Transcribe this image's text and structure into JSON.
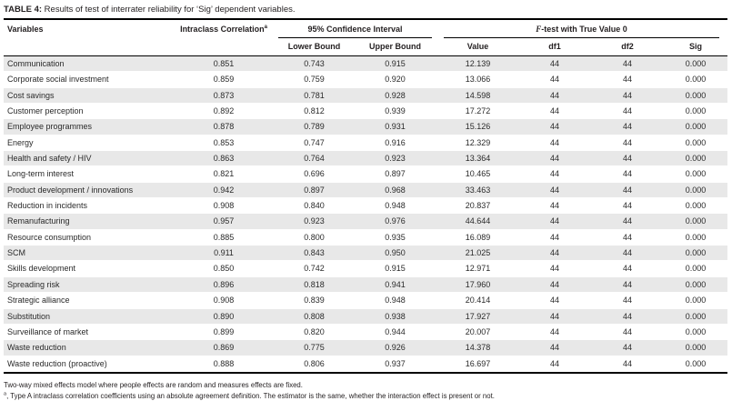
{
  "title": {
    "bold": "TABLE 4:",
    "rest": " Results of test of interrater reliability for ‘Sig’ dependent variables."
  },
  "table": {
    "headers": {
      "variables": "Variables",
      "icc": "Intraclass Correlation",
      "icc_sup": "a",
      "ci_group": "95% Confidence Interval",
      "ci_lower": "Lower Bound",
      "ci_upper": "Upper Bound",
      "ftest_italic": "F",
      "ftest_rest": "-test with True Value 0",
      "value": "Value",
      "df1": "df1",
      "df2": "df2",
      "sig": "Sig"
    },
    "rows": [
      {
        "variable": "Communication",
        "icc": "0.851",
        "lower": "0.743",
        "upper": "0.915",
        "value": "12.139",
        "df1": "44",
        "df2": "44",
        "sig": "0.000"
      },
      {
        "variable": "Corporate social investment",
        "icc": "0.859",
        "lower": "0.759",
        "upper": "0.920",
        "value": "13.066",
        "df1": "44",
        "df2": "44",
        "sig": "0.000"
      },
      {
        "variable": "Cost savings",
        "icc": "0.873",
        "lower": "0.781",
        "upper": "0.928",
        "value": "14.598",
        "df1": "44",
        "df2": "44",
        "sig": "0.000"
      },
      {
        "variable": "Customer perception",
        "icc": "0.892",
        "lower": "0.812",
        "upper": "0.939",
        "value": "17.272",
        "df1": "44",
        "df2": "44",
        "sig": "0.000"
      },
      {
        "variable": "Employee programmes",
        "icc": "0.878",
        "lower": "0.789",
        "upper": "0.931",
        "value": "15.126",
        "df1": "44",
        "df2": "44",
        "sig": "0.000"
      },
      {
        "variable": "Energy",
        "icc": "0.853",
        "lower": "0.747",
        "upper": "0.916",
        "value": "12.329",
        "df1": "44",
        "df2": "44",
        "sig": "0.000"
      },
      {
        "variable": "Health and safety / HIV",
        "icc": "0.863",
        "lower": "0.764",
        "upper": "0.923",
        "value": "13.364",
        "df1": "44",
        "df2": "44",
        "sig": "0.000"
      },
      {
        "variable": "Long-term interest",
        "icc": "0.821",
        "lower": "0.696",
        "upper": "0.897",
        "value": "10.465",
        "df1": "44",
        "df2": "44",
        "sig": "0.000"
      },
      {
        "variable": "Product development / innovations",
        "icc": "0.942",
        "lower": "0.897",
        "upper": "0.968",
        "value": "33.463",
        "df1": "44",
        "df2": "44",
        "sig": "0.000"
      },
      {
        "variable": "Reduction in incidents",
        "icc": "0.908",
        "lower": "0.840",
        "upper": "0.948",
        "value": "20.837",
        "df1": "44",
        "df2": "44",
        "sig": "0.000"
      },
      {
        "variable": "Remanufacturing",
        "icc": "0.957",
        "lower": "0.923",
        "upper": "0.976",
        "value": "44.644",
        "df1": "44",
        "df2": "44",
        "sig": "0.000"
      },
      {
        "variable": "Resource consumption",
        "icc": "0.885",
        "lower": "0.800",
        "upper": "0.935",
        "value": "16.089",
        "df1": "44",
        "df2": "44",
        "sig": "0.000"
      },
      {
        "variable": "SCM",
        "icc": "0.911",
        "lower": "0.843",
        "upper": "0.950",
        "value": "21.025",
        "df1": "44",
        "df2": "44",
        "sig": "0.000"
      },
      {
        "variable": "Skills development",
        "icc": "0.850",
        "lower": "0.742",
        "upper": "0.915",
        "value": "12.971",
        "df1": "44",
        "df2": "44",
        "sig": "0.000"
      },
      {
        "variable": "Spreading risk",
        "icc": "0.896",
        "lower": "0.818",
        "upper": "0.941",
        "value": "17.960",
        "df1": "44",
        "df2": "44",
        "sig": "0.000"
      },
      {
        "variable": "Strategic alliance",
        "icc": "0.908",
        "lower": "0.839",
        "upper": "0.948",
        "value": "20.414",
        "df1": "44",
        "df2": "44",
        "sig": "0.000"
      },
      {
        "variable": "Substitution",
        "icc": "0.890",
        "lower": "0.808",
        "upper": "0.938",
        "value": "17.927",
        "df1": "44",
        "df2": "44",
        "sig": "0.000"
      },
      {
        "variable": "Surveillance of market",
        "icc": "0.899",
        "lower": "0.820",
        "upper": "0.944",
        "value": "20.007",
        "df1": "44",
        "df2": "44",
        "sig": "0.000"
      },
      {
        "variable": "Waste reduction",
        "icc": "0.869",
        "lower": "0.775",
        "upper": "0.926",
        "value": "14.378",
        "df1": "44",
        "df2": "44",
        "sig": "0.000"
      },
      {
        "variable": "Waste reduction (proactive)",
        "icc": "0.888",
        "lower": "0.806",
        "upper": "0.937",
        "value": "16.697",
        "df1": "44",
        "df2": "44",
        "sig": "0.000"
      }
    ]
  },
  "footnotes": {
    "note1": "Two-way mixed effects model where people effects are random and measures effects are fixed.",
    "note2_sup": "a",
    "note2_text": ", Type A intraclass correlation coefficients using an absolute agreement definition. The estimator is the same, whether the interaction effect is present or not."
  },
  "colors": {
    "stripe": "#e8e8e8",
    "rule": "#000000",
    "text": "#231f20"
  }
}
